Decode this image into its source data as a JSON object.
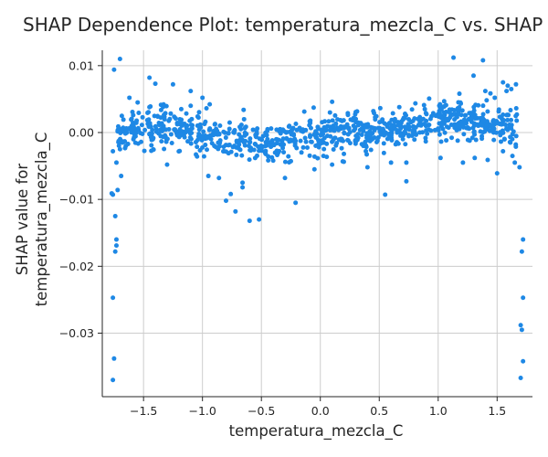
{
  "chart_data": {
    "type": "scatter",
    "title": "SHAP Dependence Plot: temperatura_mezcla_C vs. SHAP",
    "xlabel": "temperatura_mezcla_C",
    "ylabel_lines": [
      "SHAP value for",
      "temperatura_mezcla_C"
    ],
    "xlim": [
      -1.85,
      1.8
    ],
    "ylim": [
      -0.0395,
      0.0123
    ],
    "x_ticks": [
      -1.5,
      -1.0,
      -0.5,
      0.0,
      0.5,
      1.0,
      1.5
    ],
    "x_tick_labels": [
      "−1.5",
      "−1.0",
      "−0.5",
      "0.0",
      "0.5",
      "1.0",
      "1.5"
    ],
    "y_ticks": [
      0.01,
      0.0,
      -0.01,
      -0.02,
      -0.03
    ],
    "y_tick_labels": [
      "0.01",
      "0.00",
      "−0.01",
      "−0.02",
      "−0.03"
    ],
    "grid": true,
    "point_color": "#1e88e5",
    "axis_color": "#262626",
    "grid_color": "#cccccc",
    "series": [
      {
        "x": [
          -1.76,
          -1.75,
          -1.76,
          -1.74,
          -1.73,
          -1.73,
          -1.74,
          -1.76,
          -1.77,
          -1.75,
          -1.7,
          -1.72,
          -1.76,
          -1.69,
          -1.73,
          -1.7,
          -1.68,
          -1.45,
          -1.4,
          -1.25,
          -1.1,
          -1.0,
          -0.86,
          -0.72,
          -0.6,
          -0.52,
          -0.21,
          0.1,
          0.55,
          0.73,
          1.13,
          1.38,
          1.66,
          1.72,
          1.71,
          1.72,
          1.7,
          1.71,
          1.72,
          1.7,
          1.69,
          1.65,
          1.63,
          1.55,
          1.5,
          1.42,
          1.31,
          1.21,
          -0.66,
          -0.95,
          -0.8,
          -0.76,
          -0.66,
          -0.3,
          -0.05,
          0.1,
          0.4,
          0.6,
          1.02,
          1.3,
          1.4,
          1.55,
          1.59,
          1.62,
          -1.62,
          -1.55,
          -1.45,
          -1.33,
          -1.18,
          -1.1,
          0.45,
          0.67,
          0.88,
          1.18,
          1.48,
          1.58,
          -1.3,
          -0.4,
          0.2,
          0.73
        ],
        "y": [
          -0.037,
          -0.0338,
          -0.0247,
          -0.0178,
          -0.0169,
          -0.016,
          -0.0125,
          -0.0093,
          -0.0091,
          0.0094,
          0.011,
          -0.0086,
          -0.0028,
          -0.0065,
          -0.0045,
          -0.0025,
          -0.0015,
          0.0082,
          0.0073,
          0.0072,
          0.0062,
          0.0052,
          -0.0068,
          -0.0118,
          -0.0132,
          -0.013,
          -0.0105,
          0.0046,
          -0.0093,
          -0.0073,
          0.0112,
          0.0108,
          0.0072,
          -0.016,
          -0.0178,
          -0.0247,
          -0.0288,
          -0.0295,
          -0.0342,
          -0.0367,
          -0.0052,
          -0.0045,
          -0.0035,
          -0.0028,
          -0.0061,
          -0.0041,
          -0.0038,
          -0.0045,
          -0.0082,
          -0.0065,
          -0.0102,
          -0.0092,
          -0.0075,
          -0.0068,
          -0.0055,
          -0.0048,
          -0.0052,
          -0.0045,
          -0.0038,
          0.0085,
          0.0062,
          0.0075,
          0.007,
          0.0065,
          0.0052,
          0.0045,
          0.0038,
          0.0042,
          0.0035,
          0.004,
          0.0032,
          0.0038,
          0.0041,
          0.0058,
          0.0052,
          0.0062,
          -0.0048,
          -0.0042,
          -0.0032,
          -0.0045
        ]
      },
      {
        "band": [
          [
            -1.8,
            0.0002
          ],
          [
            -1.65,
            0.0004
          ],
          [
            -1.5,
            0.0008
          ],
          [
            -1.3,
            0.001
          ],
          [
            -1.1,
            0.0004
          ],
          [
            -0.9,
            -0.0005
          ],
          [
            -0.7,
            -0.0013
          ],
          [
            -0.5,
            -0.0016
          ],
          [
            -0.3,
            -0.0012
          ],
          [
            -0.1,
            -0.0006
          ],
          [
            0.1,
            0.0
          ],
          [
            0.3,
            0.0002
          ],
          [
            0.5,
            0.0001
          ],
          [
            0.7,
            0.0005
          ],
          [
            0.9,
            0.0012
          ],
          [
            1.1,
            0.0018
          ],
          [
            1.3,
            0.0016
          ],
          [
            1.5,
            0.001
          ],
          [
            1.7,
            0.0006
          ]
        ],
        "count": 920,
        "x_range": [
          -1.72,
          1.68
        ],
        "spread": 0.0024,
        "seed": 7
      }
    ]
  }
}
